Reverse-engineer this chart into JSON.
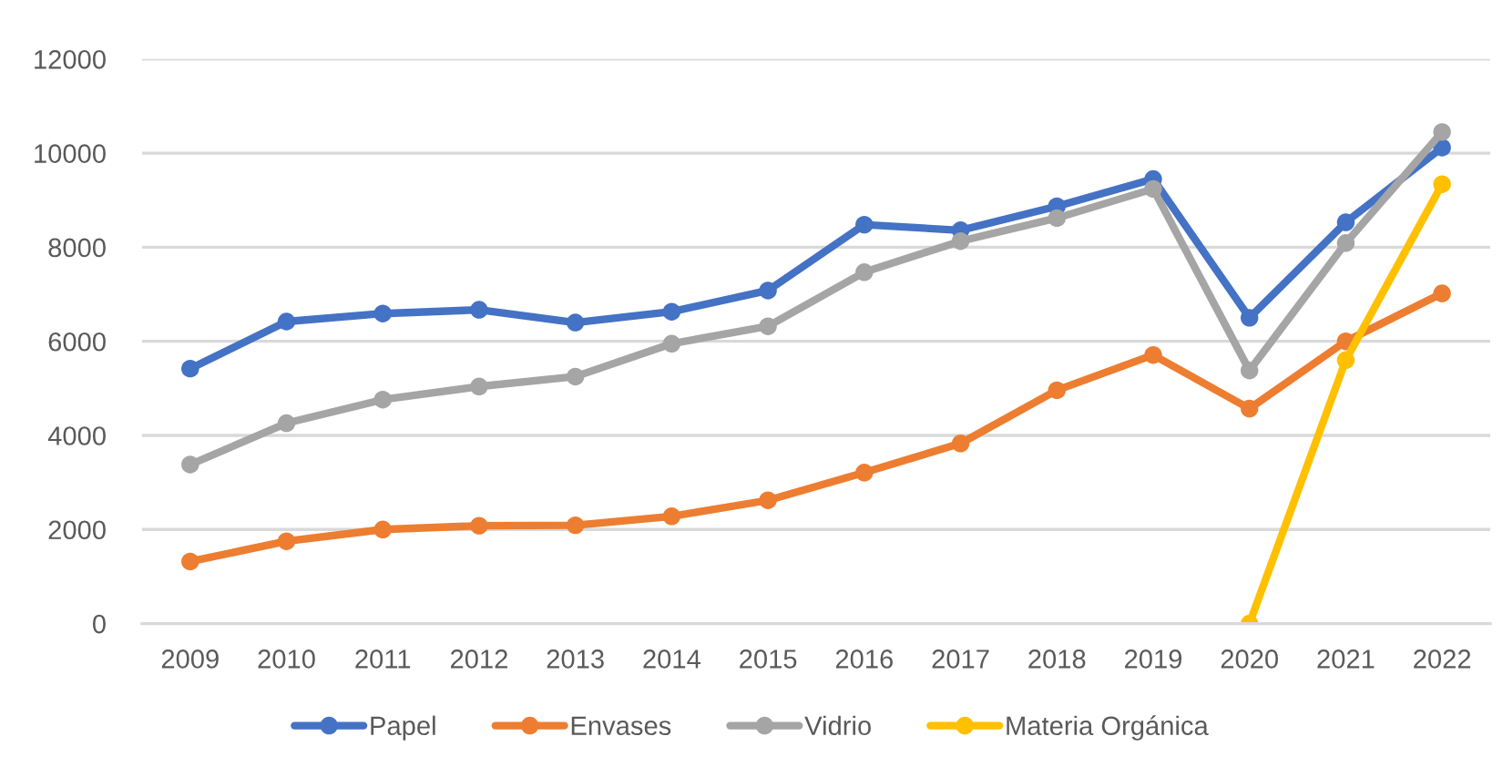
{
  "chart_data": {
    "type": "line",
    "categories": [
      "2009",
      "2010",
      "2011",
      "2012",
      "2013",
      "2014",
      "2015",
      "2016",
      "2017",
      "2018",
      "2019",
      "2020",
      "2021",
      "2022"
    ],
    "series": [
      {
        "name": "Papel",
        "color": "#4472c4",
        "values": [
          5420,
          6420,
          6590,
          6670,
          6400,
          6630,
          7080,
          8480,
          8360,
          8870,
          9450,
          6500,
          8530,
          10120
        ]
      },
      {
        "name": "Envases",
        "color": "#ed7d31",
        "values": [
          1320,
          1750,
          2000,
          2080,
          2090,
          2280,
          2620,
          3210,
          3830,
          4960,
          5710,
          4570,
          6000,
          7020
        ]
      },
      {
        "name": "Vidrio",
        "color": "#a5a5a5",
        "values": [
          3380,
          4260,
          4760,
          5040,
          5250,
          5950,
          6320,
          7470,
          8130,
          8620,
          9240,
          5380,
          8090,
          10450
        ]
      },
      {
        "name": "Materia Orgánica",
        "color": "#ffc000",
        "values": [
          null,
          null,
          null,
          null,
          null,
          null,
          null,
          null,
          null,
          null,
          null,
          0,
          5600,
          9340
        ]
      }
    ],
    "ylim": [
      0,
      12000
    ],
    "yticks": [
      0,
      2000,
      4000,
      6000,
      8000,
      10000,
      12000
    ],
    "grid": "y",
    "legend": "bottom",
    "marker": "circle",
    "line_style": "solid"
  }
}
